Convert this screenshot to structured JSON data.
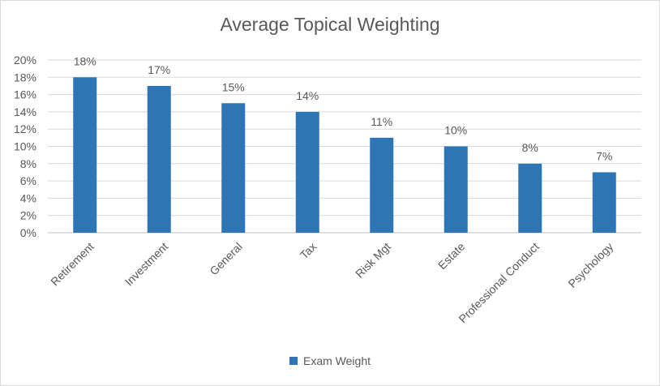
{
  "chart_data": {
    "type": "bar",
    "title": "Average Topical Weighting",
    "categories": [
      "Retirement",
      "Investment",
      "General",
      "Tax",
      "Risk Mgt",
      "Estate",
      "Professional Conduct",
      "Psychology"
    ],
    "series": [
      {
        "name": "Exam Weight",
        "values": [
          18,
          17,
          15,
          14,
          11,
          10,
          8,
          7
        ],
        "color": "#2e75b6"
      }
    ],
    "data_labels": [
      "18%",
      "17%",
      "15%",
      "14%",
      "11%",
      "10%",
      "8%",
      "7%"
    ],
    "y_ticks": [
      "0%",
      "2%",
      "4%",
      "6%",
      "8%",
      "10%",
      "12%",
      "14%",
      "16%",
      "18%",
      "20%"
    ],
    "ylim": [
      0,
      20
    ],
    "y_unit": "%",
    "grid": true,
    "legend_position": "bottom",
    "xlabel": "",
    "ylabel": ""
  }
}
